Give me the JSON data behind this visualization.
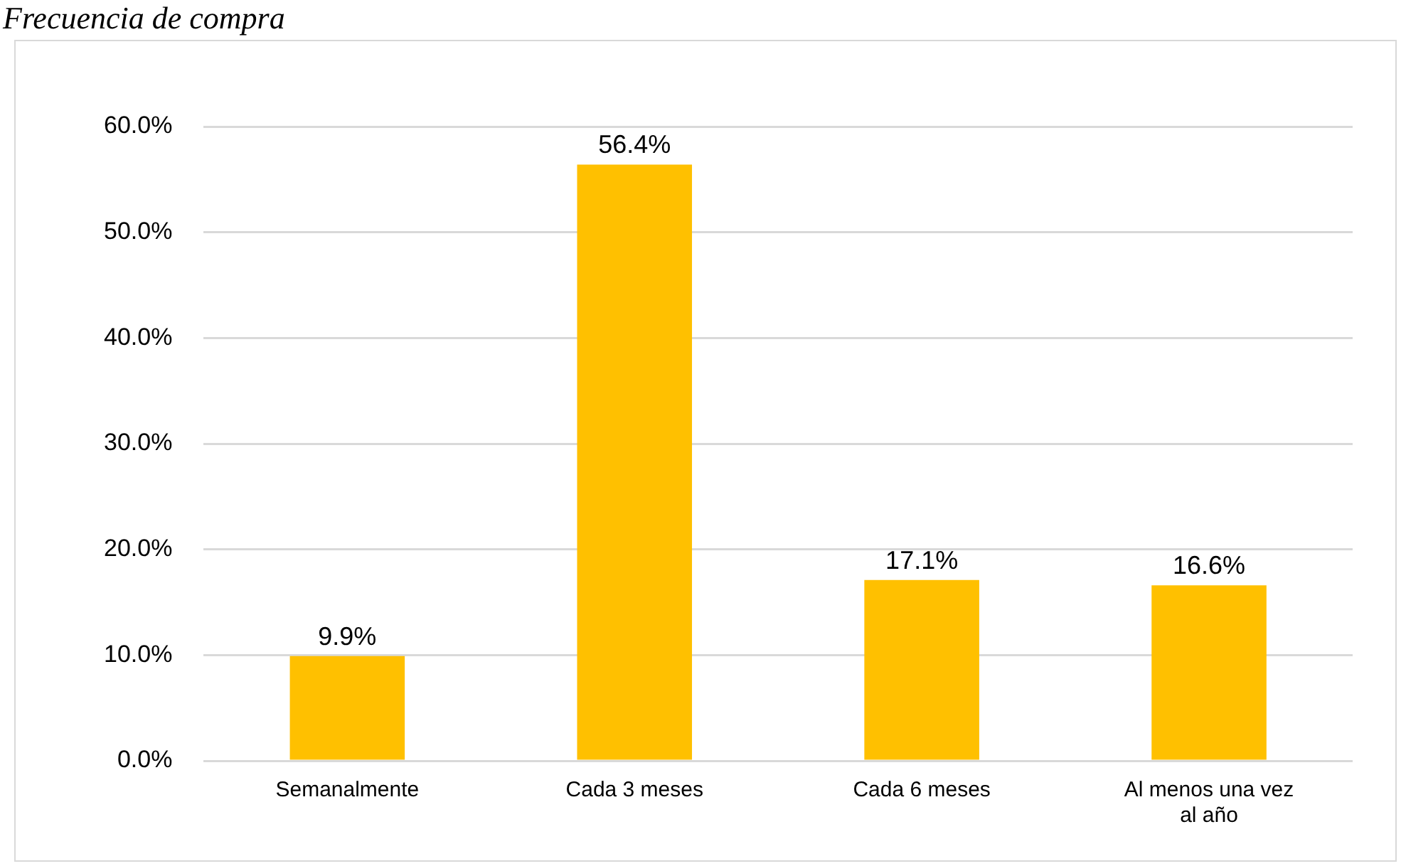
{
  "chart_data": {
    "type": "bar",
    "title": "Frecuencia de compra",
    "categories": [
      "Semanalmente",
      "Cada 3 meses",
      "Cada 6 meses",
      "Al menos una vez al año"
    ],
    "values": [
      9.9,
      56.4,
      17.1,
      16.6
    ],
    "color": "#ffc000",
    "value_labels": [
      "9.9%",
      "56.4%",
      "17.1%",
      "16.6%"
    ],
    "ylim": [
      0,
      60
    ],
    "yticks": [
      {
        "value": 0,
        "label": "0.0%"
      },
      {
        "value": 10,
        "label": "10.0%"
      },
      {
        "value": 20,
        "label": "20.0%"
      },
      {
        "value": 30,
        "label": "30.0%"
      },
      {
        "value": 40,
        "label": "40.0%"
      },
      {
        "value": 50,
        "label": "50.0%"
      },
      {
        "value": 60,
        "label": "60.0%"
      }
    ],
    "grid": "y",
    "legend": false
  }
}
